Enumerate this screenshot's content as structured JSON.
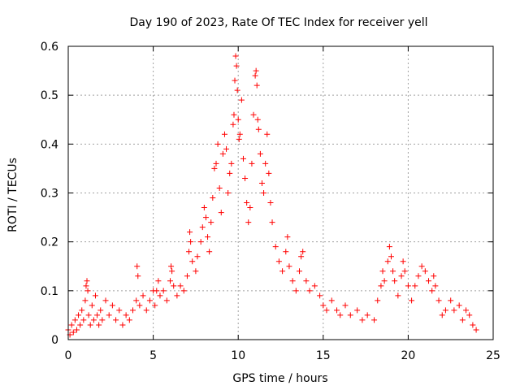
{
  "chart_data": {
    "type": "scatter",
    "title": "Day 190 of 2023, Rate Of TEC Index for receiver yell",
    "xlabel": "GPS time / hours",
    "ylabel": "ROTI / TECUs",
    "xlim": [
      0,
      25
    ],
    "ylim": [
      0,
      0.6
    ],
    "xticks": [
      0,
      5,
      10,
      15,
      20,
      25
    ],
    "xtick_labels": [
      "0",
      "5",
      "10",
      "15",
      "20",
      "25"
    ],
    "yticks": [
      0,
      0.1,
      0.2,
      0.3,
      0.4,
      0.5,
      0.6
    ],
    "ytick_labels": [
      "0",
      "0.1",
      "0.2",
      "0.3",
      "0.4",
      "0.5",
      "0.6"
    ],
    "grid": true,
    "marker": "+",
    "series_color": "#ff0000",
    "series": [
      {
        "name": "ROTI",
        "points": [
          [
            0.0,
            0.02
          ],
          [
            0.1,
            0.01
          ],
          [
            0.2,
            0.03
          ],
          [
            0.3,
            0.015
          ],
          [
            0.4,
            0.04
          ],
          [
            0.5,
            0.02
          ],
          [
            0.6,
            0.05
          ],
          [
            0.7,
            0.03
          ],
          [
            0.8,
            0.06
          ],
          [
            0.9,
            0.04
          ],
          [
            1.0,
            0.08
          ],
          [
            1.05,
            0.11
          ],
          [
            1.1,
            0.12
          ],
          [
            1.15,
            0.1
          ],
          [
            1.2,
            0.05
          ],
          [
            1.3,
            0.03
          ],
          [
            1.4,
            0.07
          ],
          [
            1.5,
            0.04
          ],
          [
            1.6,
            0.09
          ],
          [
            1.7,
            0.05
          ],
          [
            1.8,
            0.03
          ],
          [
            1.9,
            0.06
          ],
          [
            2.0,
            0.04
          ],
          [
            2.2,
            0.08
          ],
          [
            2.4,
            0.05
          ],
          [
            2.6,
            0.07
          ],
          [
            2.8,
            0.04
          ],
          [
            3.0,
            0.06
          ],
          [
            3.2,
            0.03
          ],
          [
            3.4,
            0.05
          ],
          [
            3.6,
            0.04
          ],
          [
            3.8,
            0.06
          ],
          [
            4.0,
            0.08
          ],
          [
            4.05,
            0.15
          ],
          [
            4.1,
            0.13
          ],
          [
            4.2,
            0.07
          ],
          [
            4.4,
            0.09
          ],
          [
            4.6,
            0.06
          ],
          [
            4.8,
            0.08
          ],
          [
            5.0,
            0.1
          ],
          [
            5.1,
            0.07
          ],
          [
            5.2,
            0.1
          ],
          [
            5.3,
            0.12
          ],
          [
            5.4,
            0.09
          ],
          [
            5.6,
            0.1
          ],
          [
            5.8,
            0.08
          ],
          [
            6.0,
            0.12
          ],
          [
            6.05,
            0.15
          ],
          [
            6.1,
            0.14
          ],
          [
            6.2,
            0.11
          ],
          [
            6.4,
            0.09
          ],
          [
            6.6,
            0.11
          ],
          [
            6.8,
            0.1
          ],
          [
            7.0,
            0.13
          ],
          [
            7.1,
            0.18
          ],
          [
            7.15,
            0.22
          ],
          [
            7.2,
            0.2
          ],
          [
            7.3,
            0.16
          ],
          [
            7.5,
            0.14
          ],
          [
            7.6,
            0.17
          ],
          [
            7.8,
            0.2
          ],
          [
            7.9,
            0.23
          ],
          [
            8.0,
            0.27
          ],
          [
            8.1,
            0.25
          ],
          [
            8.2,
            0.21
          ],
          [
            8.3,
            0.18
          ],
          [
            8.4,
            0.24
          ],
          [
            8.5,
            0.29
          ],
          [
            8.6,
            0.35
          ],
          [
            8.7,
            0.36
          ],
          [
            8.8,
            0.4
          ],
          [
            8.9,
            0.31
          ],
          [
            9.0,
            0.26
          ],
          [
            9.1,
            0.38
          ],
          [
            9.2,
            0.42
          ],
          [
            9.3,
            0.39
          ],
          [
            9.4,
            0.3
          ],
          [
            9.5,
            0.34
          ],
          [
            9.6,
            0.36
          ],
          [
            9.7,
            0.44
          ],
          [
            9.75,
            0.46
          ],
          [
            9.8,
            0.53
          ],
          [
            9.85,
            0.58
          ],
          [
            9.9,
            0.56
          ],
          [
            9.95,
            0.51
          ],
          [
            10.0,
            0.45
          ],
          [
            10.05,
            0.41
          ],
          [
            10.1,
            0.42
          ],
          [
            10.2,
            0.49
          ],
          [
            10.3,
            0.37
          ],
          [
            10.4,
            0.33
          ],
          [
            10.5,
            0.28
          ],
          [
            10.6,
            0.24
          ],
          [
            10.7,
            0.27
          ],
          [
            10.8,
            0.36
          ],
          [
            10.9,
            0.46
          ],
          [
            11.0,
            0.54
          ],
          [
            11.05,
            0.55
          ],
          [
            11.1,
            0.52
          ],
          [
            11.15,
            0.45
          ],
          [
            11.2,
            0.43
          ],
          [
            11.3,
            0.38
          ],
          [
            11.4,
            0.32
          ],
          [
            11.5,
            0.3
          ],
          [
            11.6,
            0.36
          ],
          [
            11.7,
            0.42
          ],
          [
            11.8,
            0.34
          ],
          [
            11.9,
            0.28
          ],
          [
            12.0,
            0.24
          ],
          [
            12.2,
            0.19
          ],
          [
            12.4,
            0.16
          ],
          [
            12.6,
            0.14
          ],
          [
            12.8,
            0.18
          ],
          [
            12.9,
            0.21
          ],
          [
            13.0,
            0.15
          ],
          [
            13.2,
            0.12
          ],
          [
            13.4,
            0.1
          ],
          [
            13.6,
            0.14
          ],
          [
            13.7,
            0.17
          ],
          [
            13.8,
            0.18
          ],
          [
            14.0,
            0.12
          ],
          [
            14.2,
            0.1
          ],
          [
            14.5,
            0.11
          ],
          [
            14.8,
            0.09
          ],
          [
            15.0,
            0.07
          ],
          [
            15.2,
            0.06
          ],
          [
            15.5,
            0.08
          ],
          [
            15.8,
            0.06
          ],
          [
            16.0,
            0.05
          ],
          [
            16.3,
            0.07
          ],
          [
            16.6,
            0.05
          ],
          [
            17.0,
            0.06
          ],
          [
            17.3,
            0.04
          ],
          [
            17.6,
            0.05
          ],
          [
            18.0,
            0.04
          ],
          [
            18.2,
            0.08
          ],
          [
            18.4,
            0.11
          ],
          [
            18.5,
            0.14
          ],
          [
            18.6,
            0.12
          ],
          [
            18.8,
            0.16
          ],
          [
            18.9,
            0.19
          ],
          [
            19.0,
            0.17
          ],
          [
            19.1,
            0.14
          ],
          [
            19.2,
            0.12
          ],
          [
            19.4,
            0.09
          ],
          [
            19.6,
            0.13
          ],
          [
            19.7,
            0.16
          ],
          [
            19.8,
            0.14
          ],
          [
            20.0,
            0.11
          ],
          [
            20.2,
            0.08
          ],
          [
            20.4,
            0.11
          ],
          [
            20.6,
            0.13
          ],
          [
            20.8,
            0.15
          ],
          [
            21.0,
            0.14
          ],
          [
            21.2,
            0.12
          ],
          [
            21.4,
            0.1
          ],
          [
            21.5,
            0.13
          ],
          [
            21.6,
            0.11
          ],
          [
            21.8,
            0.08
          ],
          [
            22.0,
            0.05
          ],
          [
            22.2,
            0.06
          ],
          [
            22.5,
            0.08
          ],
          [
            22.7,
            0.06
          ],
          [
            23.0,
            0.07
          ],
          [
            23.2,
            0.04
          ],
          [
            23.4,
            0.06
          ],
          [
            23.6,
            0.05
          ],
          [
            23.8,
            0.03
          ],
          [
            24.0,
            0.02
          ]
        ]
      }
    ]
  }
}
